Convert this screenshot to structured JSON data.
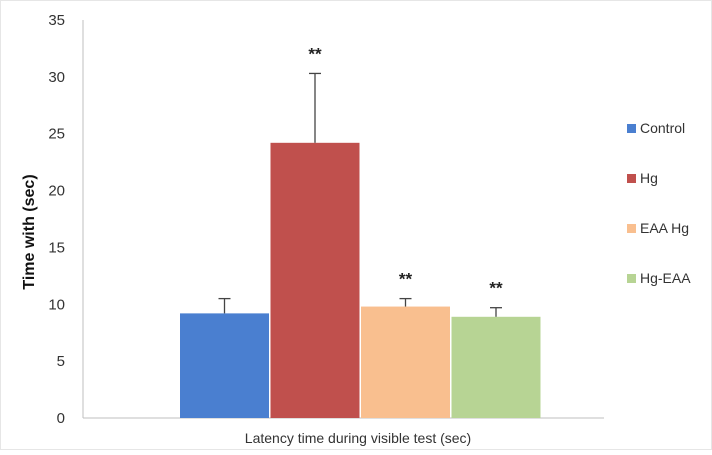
{
  "chart_data": {
    "type": "bar",
    "title": "",
    "xlabel": "Latency time during visible test (sec)",
    "ylabel": "Time with (sec)",
    "ylim": [
      0,
      35
    ],
    "yticks": [
      0,
      5,
      10,
      15,
      20,
      25,
      30,
      35
    ],
    "ytick_labels": [
      "0",
      "5",
      "10",
      "15",
      "20",
      "25",
      "30",
      "35"
    ],
    "grid": false,
    "legend_position": "right",
    "series": [
      {
        "name": "Control",
        "value": 9.2,
        "error": 1.3,
        "color": "#4a7fd0",
        "annotation": ""
      },
      {
        "name": "Hg",
        "value": 24.2,
        "error": 6.1,
        "color": "#c0504d",
        "annotation": "**"
      },
      {
        "name": "EAA Hg",
        "value": 9.8,
        "error": 0.7,
        "color": "#f9bf8f",
        "annotation": "**"
      },
      {
        "name": "Hg-EAA",
        "value": 8.9,
        "error": 0.8,
        "color": "#b7d494",
        "annotation": "**"
      }
    ]
  }
}
